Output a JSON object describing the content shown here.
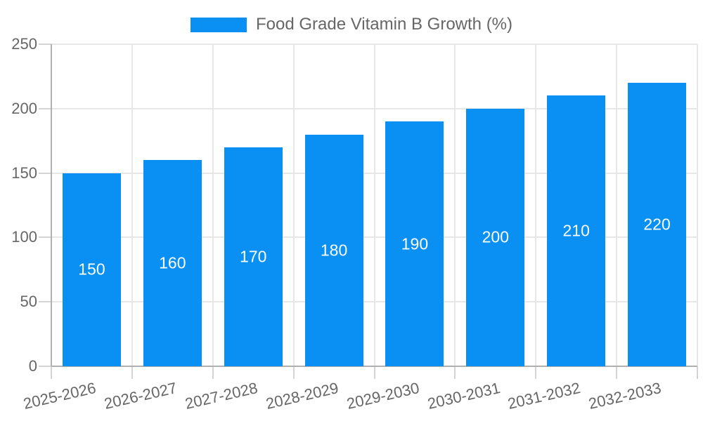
{
  "legend": {
    "label": "Food Grade Vitamin B Growth (%)"
  },
  "chart_data": {
    "type": "bar",
    "title": "Food Grade Vitamin B Growth (%)",
    "categories": [
      "2025-2026",
      "2026-2027",
      "2027-2028",
      "2028-2029",
      "2029-2030",
      "2030-2031",
      "2031-2032",
      "2032-2033"
    ],
    "series": [
      {
        "name": "Food Grade Vitamin B Growth (%)",
        "values": [
          150,
          160,
          170,
          180,
          190,
          200,
          210,
          220
        ]
      }
    ],
    "value_labels_shown": true,
    "xlabel": "",
    "ylabel": "",
    "ylim": [
      0,
      250
    ],
    "yticks": [
      0,
      50,
      100,
      150,
      200,
      250
    ],
    "grid": true,
    "legend_position": "top-center"
  },
  "colors": {
    "bar": "#0990F2",
    "text": "#666666",
    "grid": "#e7e7e7",
    "tick": "#d4d4d4",
    "axis": "#b0b0b0",
    "value_label": "#ffffff",
    "background": "#ffffff"
  }
}
